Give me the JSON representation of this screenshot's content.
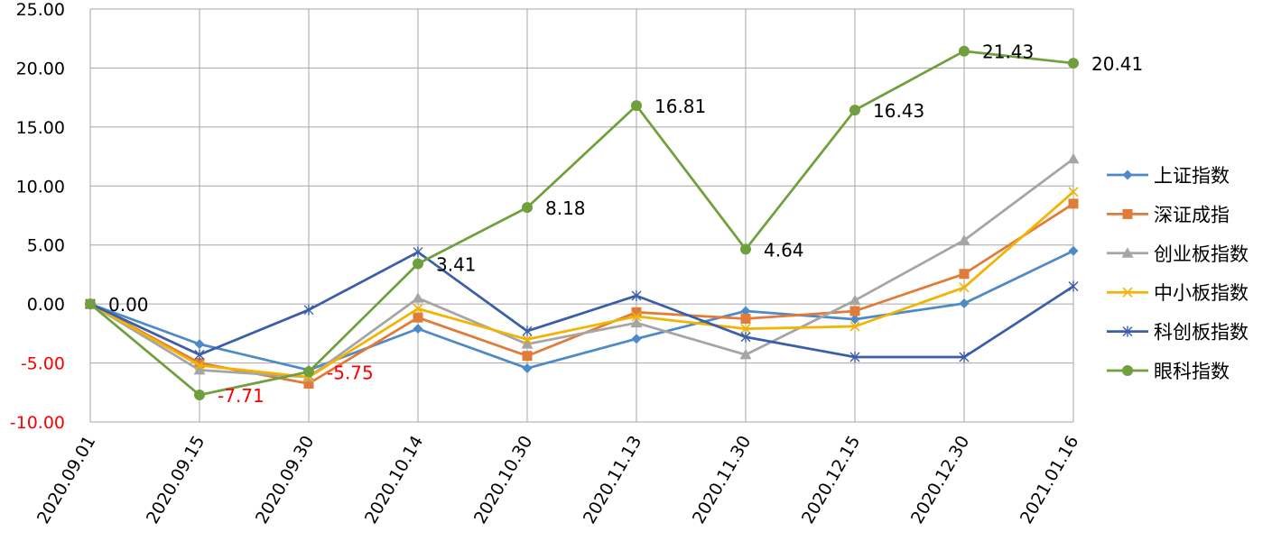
{
  "chart_data": {
    "type": "line",
    "title": "",
    "xlabel": "",
    "ylabel": "",
    "ylim": [
      -10,
      25
    ],
    "ystep": 5,
    "grid": true,
    "legend_position": "right",
    "negative_tick_color": "#ff0000",
    "categories": [
      "2020.09.01",
      "2020.09.15",
      "2020.09.30",
      "2020.10.14",
      "2020.10.30",
      "2020.11.13",
      "2020.11.30",
      "2020.12.15",
      "2020.12.30",
      "2021.01.16"
    ],
    "yticks": [
      "25.00",
      "20.00",
      "15.00",
      "10.00",
      "5.00",
      "0.00",
      "-5.00",
      "-10.00"
    ],
    "series": [
      {
        "name": "上证指数",
        "color": "#4e8ac8",
        "marker": "diamond",
        "values": [
          0.0,
          -3.4,
          -5.6,
          -2.1,
          -5.45,
          -2.95,
          -0.6,
          -1.3,
          0.05,
          4.5
        ]
      },
      {
        "name": "深证成指",
        "color": "#e07b39",
        "marker": "square",
        "values": [
          0.0,
          -5.0,
          -6.75,
          -1.15,
          -4.4,
          -0.7,
          -1.25,
          -0.6,
          2.55,
          8.5
        ]
      },
      {
        "name": "创业板指数",
        "color": "#a5a5a5",
        "marker": "triangle",
        "values": [
          0.0,
          -5.6,
          -6.2,
          0.5,
          -3.4,
          -1.6,
          -4.3,
          0.3,
          5.4,
          12.3
        ]
      },
      {
        "name": "中小板指数",
        "color": "#f2b400",
        "marker": "x",
        "values": [
          0.0,
          -5.2,
          -6.2,
          -0.4,
          -3.0,
          -1.05,
          -2.1,
          -1.9,
          1.4,
          9.5
        ]
      },
      {
        "name": "科创板指数",
        "color": "#3b5ea8",
        "marker": "star",
        "values": [
          0.0,
          -4.3,
          -0.5,
          4.4,
          -2.3,
          0.7,
          -2.8,
          -4.5,
          -4.5,
          1.5
        ]
      },
      {
        "name": "眼科指数",
        "color": "#70a03e",
        "marker": "circle",
        "values": [
          0.0,
          -7.71,
          -5.75,
          3.41,
          8.18,
          16.81,
          4.64,
          16.43,
          21.43,
          20.41
        ],
        "labels": [
          "0.00",
          "-7.71",
          "-5.75",
          "3.41",
          "8.18",
          "16.81",
          "4.64",
          "16.43",
          "21.43",
          "20.41"
        ],
        "label_colors": [
          "#000000",
          "#ff0000",
          "#ff0000",
          "#000000",
          "#000000",
          "#000000",
          "#000000",
          "#000000",
          "#000000",
          "#000000"
        ]
      }
    ]
  }
}
